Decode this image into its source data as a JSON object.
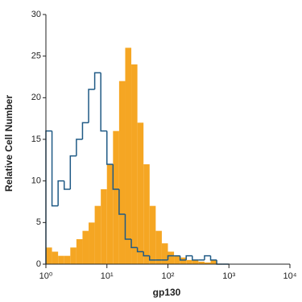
{
  "chart_data": {
    "type": "histogram",
    "xlabel": "gp130",
    "ylabel": "Relative Cell Number",
    "log_x": true,
    "bins": [
      1,
      1.259,
      1.585,
      1.995,
      2.512,
      3.162,
      3.981,
      5.012,
      6.31,
      7.943,
      10,
      12.59,
      15.85,
      19.95,
      25.12,
      31.62,
      39.81,
      50.12,
      63.1,
      79.43,
      100,
      125.9,
      158.5,
      199.5,
      251.2,
      316.2,
      398.1,
      501.2,
      631,
      794.3,
      1000
    ],
    "series": [
      {
        "color": "#f5a623",
        "style": "filled",
        "values": [
          2,
          1.5,
          1,
          1,
          2,
          3,
          4,
          5,
          7,
          9,
          12,
          16,
          22,
          26,
          24,
          17,
          12,
          7,
          4,
          2.5,
          1.5,
          1,
          0.8,
          0.5,
          0.5,
          0.3,
          0.2,
          0.5,
          0,
          0
        ]
      },
      {
        "color": "#1f5a85",
        "style": "outline",
        "values": [
          16,
          7,
          10,
          9,
          13,
          15,
          17,
          21,
          23,
          16,
          12,
          9,
          6,
          3,
          2,
          1.5,
          1,
          0.5,
          0.5,
          0.5,
          1,
          1,
          0.5,
          1,
          0.5,
          0.5,
          1,
          0.5,
          0,
          0
        ]
      }
    ],
    "xlim": [
      1,
      10000
    ],
    "ylim": [
      0,
      30
    ],
    "xticks": [
      {
        "value": 1,
        "label": "10⁰"
      },
      {
        "value": 10,
        "label": "10¹"
      },
      {
        "value": 100,
        "label": "10²"
      },
      {
        "value": 1000,
        "label": "10³"
      },
      {
        "value": 10000,
        "label": "10⁴"
      }
    ],
    "yticks": [
      0,
      5,
      10,
      15,
      20,
      25,
      30
    ]
  }
}
